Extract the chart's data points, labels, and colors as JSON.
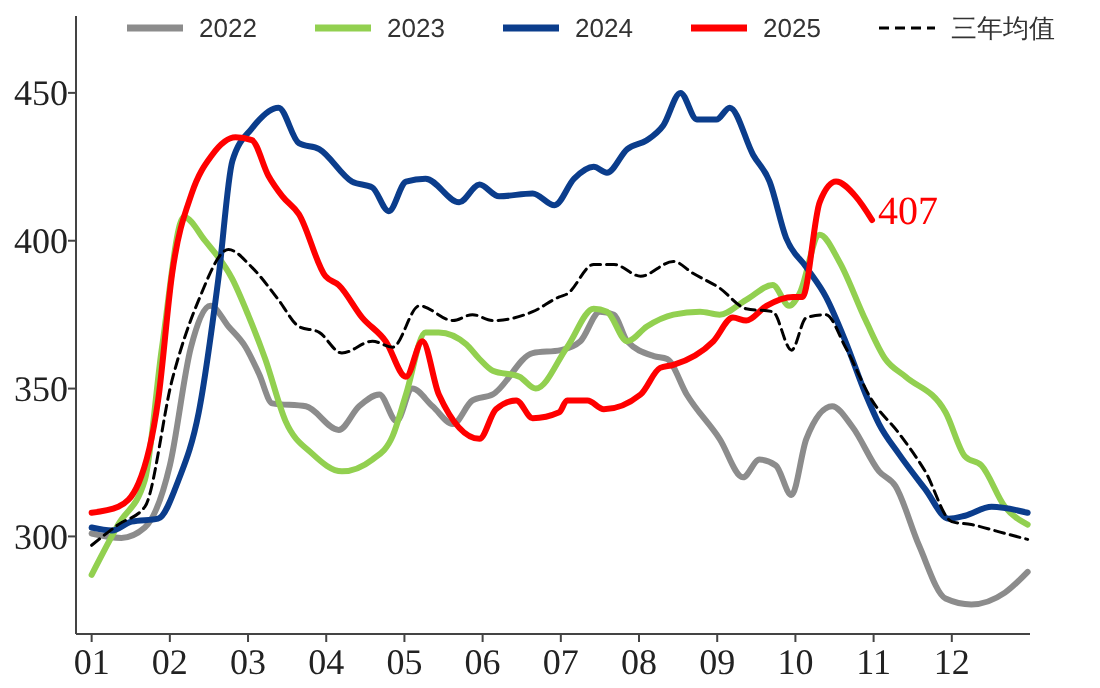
{
  "chart_data": {
    "type": "line",
    "xlim": [
      0.8,
      13
    ],
    "ylim": [
      267,
      476
    ],
    "xticks": [
      {
        "value": 1,
        "label": "01"
      },
      {
        "value": 2,
        "label": "02"
      },
      {
        "value": 3,
        "label": "03"
      },
      {
        "value": 4,
        "label": "04"
      },
      {
        "value": 5,
        "label": "05"
      },
      {
        "value": 6,
        "label": "06"
      },
      {
        "value": 7,
        "label": "07"
      },
      {
        "value": 8,
        "label": "08"
      },
      {
        "value": 9,
        "label": "09"
      },
      {
        "value": 10,
        "label": "10"
      },
      {
        "value": 11,
        "label": "11"
      },
      {
        "value": 12,
        "label": "12"
      }
    ],
    "yticks": [
      300,
      350,
      400,
      450
    ],
    "grid": false,
    "legend": "top",
    "marker": "none",
    "annotations": [
      {
        "text": "407",
        "x": 10.98,
        "y": 407
      }
    ],
    "series": [
      {
        "name": "2022",
        "color": "#8c8c8c",
        "x": [
          1,
          1.38,
          1.68,
          2,
          2.27,
          2.52,
          2.75,
          2.97,
          3.14,
          3.31,
          3.74,
          4.16,
          4.42,
          4.68,
          4.9,
          5.1,
          5.36,
          5.62,
          5.87,
          6.13,
          6.64,
          7,
          7.25,
          7.5,
          7.68,
          7.85,
          8.19,
          8.36,
          8.61,
          9.03,
          9.33,
          9.54,
          9.75,
          9.95,
          10.14,
          10.47,
          10.73,
          11.07,
          11.28,
          11.58,
          11.92,
          12.25,
          12.68,
          12.97
        ],
        "values": [
          301,
          299.5,
          303,
          324,
          364,
          378,
          371,
          364,
          355,
          345,
          344,
          336,
          344,
          348,
          339,
          350,
          344,
          338,
          346,
          348,
          362,
          363,
          366,
          376,
          375,
          366,
          361,
          360,
          348,
          333,
          320,
          326,
          324,
          314,
          333,
          344,
          337,
          322,
          317,
          297,
          279,
          277,
          281,
          288
        ]
      },
      {
        "name": "2023",
        "color": "#92d050",
        "x": [
          1,
          1.34,
          1.68,
          1.9,
          2.18,
          2.45,
          2.8,
          3,
          3.22,
          3.48,
          3.82,
          4.2,
          4.59,
          4.85,
          5.02,
          5.27,
          5.44,
          5.79,
          5.96,
          6.13,
          6.47,
          6.68,
          7.08,
          7.42,
          7.59,
          7.85,
          8.1,
          8.44,
          8.78,
          9.03,
          9.37,
          9.71,
          9.92,
          10.05,
          10.31,
          10.56,
          10.9,
          11.15,
          11.41,
          11.92,
          12.17,
          12.38,
          12.68,
          12.97
        ],
        "values": [
          287,
          304,
          319,
          364,
          408,
          400,
          387,
          375,
          360,
          339,
          328,
          322,
          326,
          334,
          348,
          369,
          369,
          365,
          360,
          356,
          354,
          350,
          364,
          377,
          376,
          366,
          371,
          375,
          376,
          375,
          380,
          385,
          378,
          382,
          402,
          393,
          373,
          360,
          354,
          342,
          327,
          324,
          310,
          304
        ]
      },
      {
        "name": "2024",
        "color": "#0b3d8c",
        "x": [
          1,
          1.26,
          1.51,
          1.85,
          2.11,
          2.37,
          2.62,
          2.8,
          3.05,
          3.39,
          3.65,
          3.91,
          4.33,
          4.59,
          4.8,
          5.02,
          5.27,
          5.7,
          5.96,
          6.21,
          6.64,
          6.92,
          7.17,
          7.42,
          7.59,
          7.85,
          8.1,
          8.31,
          8.53,
          8.74,
          8.99,
          9.16,
          9.46,
          9.67,
          9.88,
          10.14,
          10.39,
          10.64,
          10.9,
          11.07,
          11.32,
          11.66,
          11.96,
          12.17,
          12.51,
          12.97
        ],
        "values": [
          303,
          302,
          305,
          306,
          319,
          342,
          387,
          427,
          438,
          445,
          433,
          431,
          420,
          418,
          410,
          420,
          421,
          413,
          419,
          415,
          416,
          412,
          421,
          425,
          423,
          431,
          434,
          439,
          450,
          441,
          441,
          445,
          429,
          420,
          401,
          391,
          381,
          366,
          348,
          338,
          328,
          316,
          306,
          307,
          310,
          308
        ]
      },
      {
        "name": "2025",
        "color": "#ff0000",
        "x": [
          1,
          1.34,
          1.6,
          1.85,
          2.03,
          2.28,
          2.54,
          2.84,
          3.05,
          3.26,
          3.44,
          3.65,
          3.99,
          4.16,
          4.46,
          4.76,
          5.02,
          5.23,
          5.44,
          5.96,
          6.17,
          6.43,
          6.64,
          6.98,
          7.08,
          7.34,
          7.55,
          8.02,
          8.27,
          8.44,
          8.95,
          9.2,
          9.37,
          9.63,
          9.97,
          10.09,
          10.31,
          10.52,
          10.77,
          10.98
        ],
        "values": [
          308,
          310,
          318,
          346,
          389,
          416,
          429,
          435,
          434,
          422,
          415,
          409,
          388,
          385,
          374,
          366,
          354,
          366,
          348,
          333,
          343,
          346,
          340,
          342,
          346,
          346,
          343,
          348,
          357,
          358,
          366,
          374,
          373,
          378,
          381,
          381,
          413,
          420,
          415,
          407
        ]
      },
      {
        "name": "三年均值",
        "color": "#000000",
        "line_style": "dashed",
        "x": [
          1,
          1.34,
          1.68,
          2.03,
          2.37,
          2.75,
          3.05,
          3.39,
          3.65,
          3.91,
          4.2,
          4.59,
          4.85,
          5.19,
          5.62,
          5.87,
          6.13,
          6.64,
          6.98,
          7.08,
          7.42,
          7.68,
          8.02,
          8.44,
          8.69,
          9.03,
          9.37,
          9.71,
          9.95,
          10.14,
          10.39,
          10.64,
          10.98,
          11.32,
          11.66,
          12,
          12.25,
          12.68,
          12.97
        ],
        "values": [
          297,
          304,
          310,
          353,
          380,
          397,
          391,
          380,
          371,
          369,
          362,
          366,
          364,
          378,
          373,
          375,
          373,
          376,
          381,
          382,
          392,
          392,
          388,
          393,
          389,
          384,
          377,
          376,
          363,
          374,
          375,
          364,
          346,
          335,
          322,
          305,
          304,
          301,
          299
        ]
      }
    ]
  }
}
